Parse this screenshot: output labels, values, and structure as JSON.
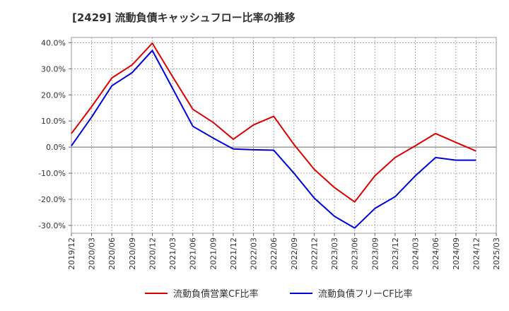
{
  "chart_data": {
    "type": "line",
    "title": "[2429]  流動負債キャッシュフロー比率の推移",
    "x": [
      "2019/12",
      "2020/03",
      "2020/06",
      "2020/09",
      "2020/12",
      "2021/03",
      "2021/06",
      "2021/09",
      "2021/12",
      "2022/03",
      "2022/06",
      "2022/09",
      "2022/12",
      "2023/03",
      "2023/06",
      "2023/09",
      "2023/12",
      "2024/03",
      "2024/06",
      "2024/09",
      "2024/12",
      "2025/03"
    ],
    "ylim": [
      -33,
      42
    ],
    "yticks": [
      40,
      30,
      20,
      10,
      0,
      -10,
      -20,
      -30
    ],
    "ytick_labels": [
      "40.0%",
      "30.0%",
      "20.0%",
      "10.0%",
      "0.0%",
      "-10.0%",
      "-20.0%",
      "-30.0%"
    ],
    "grid": true,
    "legend_position": "bottom-center",
    "series": [
      {
        "name": "流動負債営業CF比率",
        "color": "#dd0000",
        "values": [
          5.2,
          15.5,
          26.5,
          31.5,
          39.8,
          27.0,
          14.5,
          9.5,
          3.0,
          8.5,
          11.8,
          1.0,
          -8.5,
          -15.5,
          -21.0,
          -11.0,
          -4.0,
          0.5,
          5.2,
          1.8,
          -1.5,
          null
        ]
      },
      {
        "name": "流動負債フリーCF比率",
        "color": "#0000dd",
        "values": [
          0.5,
          11.5,
          23.5,
          28.5,
          37.0,
          22.5,
          8.0,
          3.5,
          -0.7,
          -1.0,
          -1.2,
          -10.0,
          -19.5,
          -26.5,
          -31.0,
          -23.5,
          -19.0,
          -11.0,
          -4.0,
          -5.0,
          -5.0,
          null
        ]
      }
    ]
  }
}
